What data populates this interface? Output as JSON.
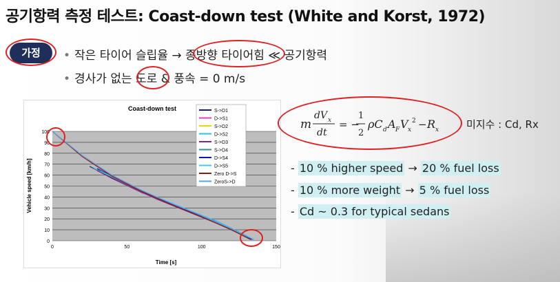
{
  "slide": {
    "title": "공기항력 측정 테스트: Coast-down test (White and Korst, 1972)",
    "assumption_label": "가정",
    "bullets": [
      "작은 타이어 슬립율 → 종방향 타이어힘 ≪ 공기항력",
      "경사가 없는 도로 & 풍속 = 0 m/s"
    ],
    "unknowns": "미지수 : Cd, Rx",
    "facts": [
      {
        "text": "10 % higher speed",
        "arrow": "→",
        "result": "20 % fuel loss"
      },
      {
        "text": "10 % more weight",
        "arrow": "→",
        "result": "5 % fuel loss"
      },
      {
        "text": "Cd ~ 0.3 for typical sedans",
        "arrow": "",
        "result": ""
      }
    ],
    "colors": {
      "badge": "#1f2e5a",
      "annotation": "#e02020",
      "highlight": "#cfeff3"
    }
  },
  "chart_data": {
    "type": "line",
    "title": "Coast-down test",
    "xlabel": "Time [s]",
    "ylabel": "Vehicle speed [km/h]",
    "xlim": [
      0,
      150
    ],
    "ylim": [
      0,
      100
    ],
    "xticks": [
      0,
      50,
      100,
      150
    ],
    "yticks": [
      0,
      10,
      20,
      30,
      40,
      50,
      60,
      70,
      80,
      90,
      100
    ],
    "grid": true,
    "legend_position": "right",
    "series": [
      {
        "name": "S->D1",
        "color": "#1a1a66",
        "x": [
          25,
          40,
          60,
          80,
          100,
          120,
          132
        ],
        "y": [
          68,
          57,
          44,
          33,
          22,
          10,
          2
        ]
      },
      {
        "name": "D->S1",
        "color": "#e040c0",
        "x": [
          28,
          45,
          65,
          85,
          105,
          125,
          133
        ],
        "y": [
          66,
          54,
          41,
          30,
          19,
          7,
          1
        ]
      },
      {
        "name": "S->D2",
        "color": "#e8d800",
        "x": [
          30,
          50,
          70,
          90,
          110,
          128,
          133
        ],
        "y": [
          65,
          51,
          38,
          27,
          16,
          5,
          1
        ]
      },
      {
        "name": "D->S2",
        "color": "#20c8e0",
        "x": [
          27,
          45,
          65,
          85,
          105,
          125,
          134
        ],
        "y": [
          67,
          55,
          42,
          31,
          20,
          8,
          1
        ]
      },
      {
        "name": "S->D3",
        "color": "#7a2a8a",
        "x": [
          30,
          50,
          70,
          90,
          110,
          128,
          132
        ],
        "y": [
          64,
          51,
          38,
          27,
          16,
          5,
          2
        ]
      },
      {
        "name": "S->D4",
        "color": "#2f8f8f",
        "x": [
          30,
          50,
          70,
          90,
          110,
          128,
          133
        ],
        "y": [
          65,
          52,
          39,
          28,
          17,
          5,
          1
        ]
      },
      {
        "name": "D->S4",
        "color": "#1010d0",
        "x": [
          30,
          50,
          70,
          90,
          110,
          128,
          134
        ],
        "y": [
          66,
          52,
          39,
          28,
          18,
          6,
          1
        ]
      },
      {
        "name": "D->S5",
        "color": "#40c8f0",
        "x": [
          32,
          50,
          70,
          90,
          110,
          128,
          135
        ],
        "y": [
          64,
          52,
          40,
          29,
          18,
          6,
          1
        ]
      },
      {
        "name": "Zero D->S",
        "color": "#8a1a1a",
        "x": [
          0,
          20,
          40,
          60,
          80,
          100,
          120,
          133
        ],
        "y": [
          100,
          77,
          59,
          45,
          33,
          22,
          10,
          1
        ]
      },
      {
        "name": "ZeroS->D",
        "color": "#5aa0e8",
        "x": [
          0,
          20,
          40,
          60,
          80,
          100,
          120,
          135
        ],
        "y": [
          100,
          78,
          60,
          46,
          34,
          23,
          11,
          1
        ]
      }
    ]
  }
}
